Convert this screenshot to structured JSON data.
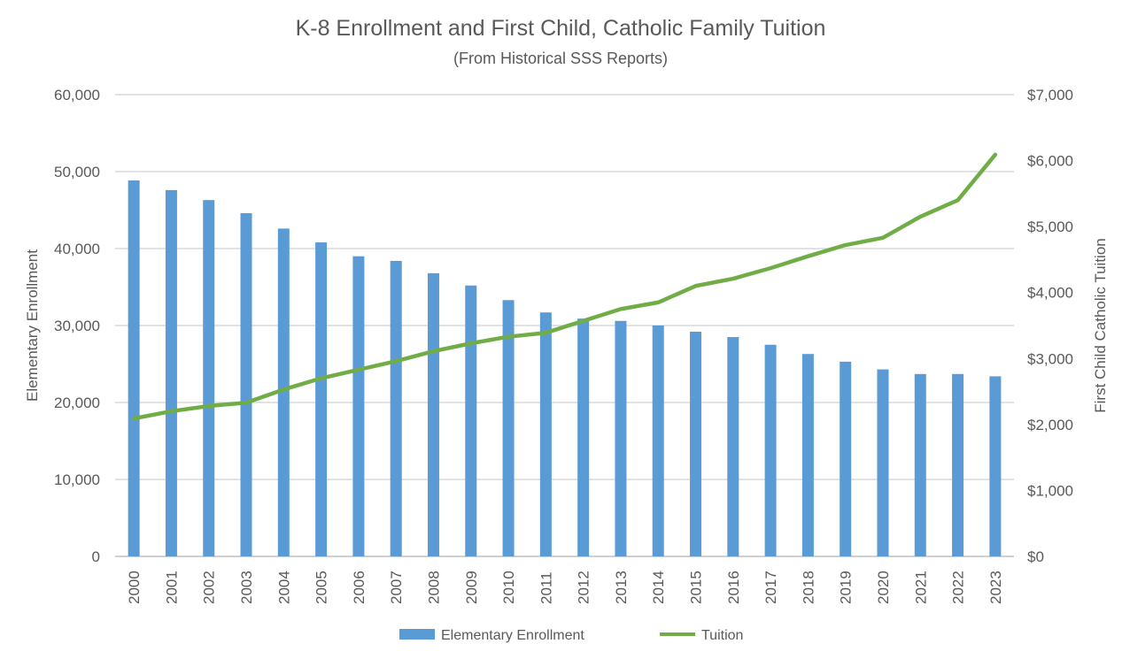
{
  "chart_data": {
    "type": "bar+line",
    "title": "K-8 Enrollment and First Child, Catholic Family Tuition",
    "subtitle": "(From Historical SSS Reports)",
    "categories": [
      "2000",
      "2001",
      "2002",
      "2003",
      "2004",
      "2005",
      "2006",
      "2007",
      "2008",
      "2009",
      "2010",
      "2011",
      "2012",
      "2013",
      "2014",
      "2015",
      "2016",
      "2017",
      "2018",
      "2019",
      "2020",
      "2021",
      "2022",
      "2023"
    ],
    "series": [
      {
        "name": "Elementary Enrollment",
        "type": "bar",
        "axis": "left",
        "color": "#5B9BD5",
        "values": [
          48850,
          47600,
          46300,
          44600,
          42600,
          40800,
          39000,
          38400,
          36800,
          35200,
          33300,
          31700,
          30900,
          30600,
          30000,
          29200,
          28500,
          27500,
          26300,
          25300,
          24300,
          23700,
          23700,
          23400
        ]
      },
      {
        "name": "Tuition",
        "type": "line",
        "axis": "right",
        "color": "#70AD47",
        "values": [
          2090,
          2200,
          2280,
          2330,
          2530,
          2700,
          2830,
          2960,
          3110,
          3230,
          3330,
          3390,
          3570,
          3750,
          3850,
          4100,
          4210,
          4370,
          4550,
          4720,
          4830,
          5150,
          5400,
          6090
        ]
      }
    ],
    "ylabel": "Elementary Enrollment",
    "ylabel_right": "First Child Catholic Tuition",
    "ylim": [
      0,
      60000
    ],
    "ylim_right": [
      0,
      7000
    ],
    "yticks": [
      "0",
      "10,000",
      "20,000",
      "30,000",
      "40,000",
      "50,000",
      "60,000"
    ],
    "yticks_right": [
      "$0",
      "$1,000",
      "$2,000",
      "$3,000",
      "$4,000",
      "$5,000",
      "$6,000",
      "$7,000"
    ],
    "grid": true,
    "legend_position": "bottom"
  }
}
